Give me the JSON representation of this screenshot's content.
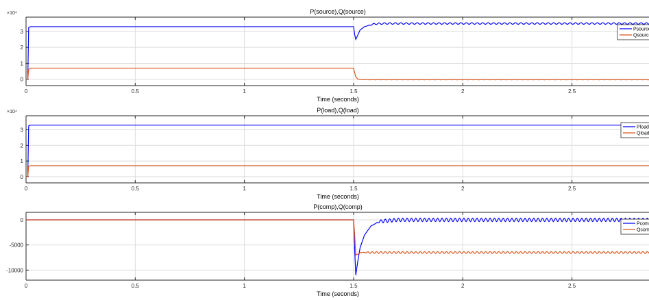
{
  "chart_data": [
    {
      "type": "line",
      "title": "P(source),Q(source)",
      "xlabel": "Time (seconds)",
      "ylabel": "",
      "exponent_label": "×10⁴",
      "xlim": [
        0,
        2.95
      ],
      "ylim": [
        -0.4,
        3.9
      ],
      "xticks": [
        0,
        0.5,
        1,
        1.5,
        2,
        2.5
      ],
      "xtick_labels": [
        "0",
        "0.5",
        "1",
        "1.5",
        "2",
        "2.5"
      ],
      "yticks": [
        0,
        1,
        2,
        3
      ],
      "ytick_labels": [
        "0",
        "1",
        "2",
        "3"
      ],
      "grid": true,
      "legend_location": "top-right",
      "series": [
        {
          "name": "Psource",
          "color": "#0000ff",
          "x": [
            0,
            0.008,
            0.012,
            0.02,
            1.5,
            1.505,
            1.51,
            1.52,
            1.53,
            1.55,
            1.58,
            1.6,
            1.65,
            2.95
          ],
          "y": [
            0,
            0,
            3.25,
            3.3,
            3.3,
            2.8,
            2.5,
            2.8,
            3.1,
            3.3,
            3.42,
            3.48,
            3.5,
            3.5
          ],
          "ripple": {
            "from": 1.56,
            "to": 2.95,
            "amplitude": 0.05,
            "period": 0.025
          }
        },
        {
          "name": "Qsource",
          "color": "#d95319",
          "x": [
            0,
            0.008,
            0.012,
            0.02,
            1.5,
            1.505,
            1.51,
            1.52,
            1.55,
            2.95
          ],
          "y": [
            0,
            0,
            0.6,
            0.7,
            0.7,
            0.4,
            0.15,
            0.0,
            -0.02,
            -0.02
          ],
          "ripple": {
            "from": 1.53,
            "to": 2.95,
            "amplitude": 0.02,
            "period": 0.025
          }
        }
      ]
    },
    {
      "type": "line",
      "title": "P(load),Q(load)",
      "xlabel": "Time (seconds)",
      "ylabel": "",
      "exponent_label": "×10⁴",
      "xlim": [
        0,
        2.95
      ],
      "ylim": [
        -0.4,
        3.9
      ],
      "xticks": [
        0,
        0.5,
        1,
        1.5,
        2,
        2.5
      ],
      "xtick_labels": [
        "0",
        "0.5",
        "1",
        "1.5",
        "2",
        "2.5"
      ],
      "yticks": [
        0,
        1,
        2,
        3
      ],
      "ytick_labels": [
        "0",
        "1",
        "2",
        "3"
      ],
      "grid": true,
      "legend_location": "top-right",
      "series": [
        {
          "name": "Pload",
          "color": "#0000ff",
          "x": [
            0,
            0.008,
            0.012,
            0.02,
            2.95
          ],
          "y": [
            0,
            0,
            3.25,
            3.3,
            3.3
          ]
        },
        {
          "name": "Qload",
          "color": "#d95319",
          "x": [
            0,
            0.008,
            0.012,
            0.02,
            2.95
          ],
          "y": [
            0,
            0,
            0.65,
            0.7,
            0.7
          ]
        }
      ]
    },
    {
      "type": "line",
      "title": "P(comp),Q(comp)",
      "xlabel": "Time (seconds)",
      "ylabel": "",
      "exponent_label": "",
      "xlim": [
        0,
        2.95
      ],
      "ylim": [
        -12000,
        1500
      ],
      "xticks": [
        0,
        0.5,
        1,
        1.5,
        2,
        2.5
      ],
      "xtick_labels": [
        "0",
        "0.5",
        "1",
        "1.5",
        "2",
        "2.5"
      ],
      "yticks": [
        0,
        -5000,
        -10000
      ],
      "ytick_labels": [
        "0",
        "-5000",
        "-10000"
      ],
      "grid": true,
      "legend_location": "top-right",
      "series": [
        {
          "name": "Pcomp",
          "color": "#0000ff",
          "x": [
            0,
            1.5,
            1.505,
            1.51,
            1.52,
            1.53,
            1.55,
            1.58,
            1.62,
            1.7,
            2.95
          ],
          "y": [
            0,
            0,
            -6000,
            -11000,
            -8000,
            -5500,
            -3000,
            -1200,
            -300,
            0,
            0
          ],
          "ripple": {
            "from": 1.6,
            "to": 2.95,
            "amplitude": 350,
            "period": 0.02
          }
        },
        {
          "name": "Qcomp",
          "color": "#d95319",
          "x": [
            0,
            1.5,
            1.505,
            1.51,
            1.52,
            1.53,
            1.55,
            2.95
          ],
          "y": [
            0,
            0,
            -3000,
            -7000,
            -6800,
            -6500,
            -6500,
            -6500
          ],
          "ripple": {
            "from": 1.54,
            "to": 2.95,
            "amplitude": 180,
            "period": 0.02
          }
        }
      ]
    }
  ]
}
